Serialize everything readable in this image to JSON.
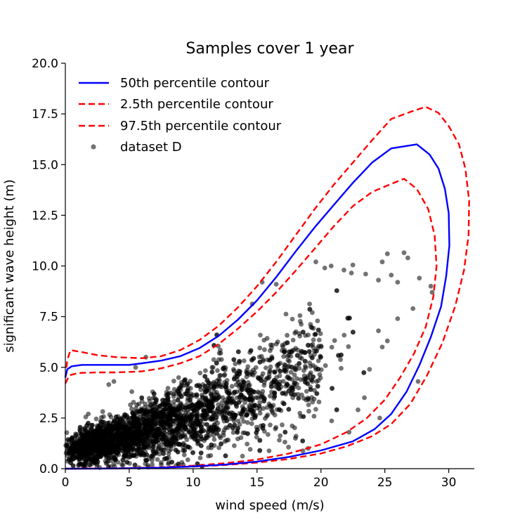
{
  "chart_data": {
    "type": "scatter",
    "title": "Samples cover 1 year",
    "xlabel": "wind speed (m/s)",
    "ylabel": "significant wave height (m)",
    "xlim": [
      0,
      32
    ],
    "ylim": [
      0,
      20
    ],
    "xticks": [
      "0",
      "5",
      "10",
      "15",
      "20",
      "25",
      "30"
    ],
    "yticks": [
      "0.0",
      "2.5",
      "5.0",
      "7.5",
      "10.0",
      "12.5",
      "15.0",
      "17.5",
      "20.0"
    ],
    "grid": false,
    "legend_position": "top-left",
    "series": [
      {
        "name": "50th percentile contour",
        "style": "solid",
        "color": "#0000ff",
        "points": [
          [
            0,
            4.5
          ],
          [
            0.15,
            4.9
          ],
          [
            0.5,
            5.05
          ],
          [
            1.3,
            5.12
          ],
          [
            3,
            5.12
          ],
          [
            5,
            5.12
          ],
          [
            6,
            5.2
          ],
          [
            7.5,
            5.33
          ],
          [
            9,
            5.55
          ],
          [
            10.5,
            5.95
          ],
          [
            12,
            6.55
          ],
          [
            13.5,
            7.35
          ],
          [
            15,
            8.3
          ],
          [
            16.5,
            9.45
          ],
          [
            18,
            10.7
          ],
          [
            19.5,
            11.9
          ],
          [
            21,
            13.0
          ],
          [
            22.5,
            14.1
          ],
          [
            24,
            15.1
          ],
          [
            25.5,
            15.8
          ],
          [
            27.5,
            16.0
          ],
          [
            28.5,
            15.5
          ],
          [
            29.2,
            14.8
          ],
          [
            29.7,
            13.8
          ],
          [
            30,
            12.6
          ],
          [
            30.05,
            11.0
          ],
          [
            29.8,
            9.5
          ],
          [
            29.4,
            8.0
          ],
          [
            28.6,
            6.5
          ],
          [
            27.7,
            5.1
          ],
          [
            26.7,
            3.8
          ],
          [
            25.5,
            2.7
          ],
          [
            24.2,
            1.95
          ],
          [
            22.5,
            1.35
          ],
          [
            20,
            0.9
          ],
          [
            17.5,
            0.58
          ],
          [
            15,
            0.35
          ],
          [
            12.5,
            0.2
          ],
          [
            10,
            0.11
          ],
          [
            7.5,
            0.05
          ],
          [
            5,
            0.02
          ],
          [
            2.5,
            0.005
          ],
          [
            0.5,
            0.0
          ],
          [
            0,
            0
          ]
        ]
      },
      {
        "name": "2.5th percentile contour",
        "style": "dashed",
        "color": "#ff0000",
        "points": [
          [
            0,
            4.5
          ],
          [
            0.15,
            5.35
          ],
          [
            0.4,
            5.85
          ],
          [
            1.3,
            5.75
          ],
          [
            2.5,
            5.6
          ],
          [
            4,
            5.5
          ],
          [
            6,
            5.45
          ],
          [
            7.5,
            5.55
          ],
          [
            9,
            5.85
          ],
          [
            10.5,
            6.35
          ],
          [
            12,
            7.05
          ],
          [
            13.5,
            7.95
          ],
          [
            15,
            9.0
          ],
          [
            16.5,
            10.2
          ],
          [
            18,
            11.5
          ],
          [
            19.5,
            12.8
          ],
          [
            21,
            14.0
          ],
          [
            22.5,
            15.1
          ],
          [
            24,
            16.2
          ],
          [
            25.5,
            17.25
          ],
          [
            27,
            17.6
          ],
          [
            28.2,
            17.85
          ],
          [
            29.2,
            17.55
          ],
          [
            30,
            16.9
          ],
          [
            30.8,
            16.0
          ],
          [
            31.3,
            14.8
          ],
          [
            31.6,
            13.2
          ],
          [
            31.55,
            11.5
          ],
          [
            31.2,
            9.8
          ],
          [
            30.5,
            8.0
          ],
          [
            29.5,
            6.2
          ],
          [
            28.3,
            4.6
          ],
          [
            27,
            3.2
          ],
          [
            25.5,
            2.2
          ],
          [
            24,
            1.6
          ],
          [
            22,
            1.1
          ],
          [
            20,
            0.75
          ],
          [
            17.5,
            0.48
          ],
          [
            15,
            0.3
          ],
          [
            12.5,
            0.18
          ],
          [
            10,
            0.1
          ],
          [
            7.5,
            0.05
          ],
          [
            5,
            0.02
          ],
          [
            2.5,
            0.005
          ],
          [
            0.5,
            0.0
          ],
          [
            0,
            0
          ]
        ]
      },
      {
        "name": "97.5th percentile contour",
        "style": "dashed",
        "color": "#ff0000",
        "points": [
          [
            0,
            4.2
          ],
          [
            0.3,
            4.6
          ],
          [
            1,
            4.72
          ],
          [
            2.5,
            4.75
          ],
          [
            4,
            4.75
          ],
          [
            6,
            4.8
          ],
          [
            7.5,
            4.95
          ],
          [
            9,
            5.2
          ],
          [
            10.5,
            5.55
          ],
          [
            12,
            6.15
          ],
          [
            13.5,
            6.9
          ],
          [
            15,
            7.75
          ],
          [
            16.5,
            8.7
          ],
          [
            18,
            9.75
          ],
          [
            19.5,
            10.85
          ],
          [
            21,
            11.95
          ],
          [
            22.5,
            12.95
          ],
          [
            24,
            13.65
          ],
          [
            25.5,
            14.05
          ],
          [
            26.5,
            14.3
          ],
          [
            27.5,
            13.8
          ],
          [
            28.4,
            12.8
          ],
          [
            28.9,
            11.5
          ],
          [
            29.05,
            10.0
          ],
          [
            28.8,
            8.5
          ],
          [
            28.2,
            7.0
          ],
          [
            27.3,
            5.7
          ],
          [
            26.2,
            4.5
          ],
          [
            25,
            3.4
          ],
          [
            23.6,
            2.5
          ],
          [
            22,
            1.8
          ],
          [
            20,
            1.2
          ],
          [
            17.5,
            0.75
          ],
          [
            15,
            0.45
          ],
          [
            12.5,
            0.27
          ],
          [
            10,
            0.15
          ],
          [
            7.5,
            0.07
          ],
          [
            5,
            0.03
          ],
          [
            2.5,
            0.01
          ],
          [
            0.5,
            0.0
          ],
          [
            0,
            0
          ]
        ]
      },
      {
        "name": "dataset D",
        "style": "points",
        "color": "#000000",
        "cloud": {
          "x_range": [
            0,
            28
          ],
          "y_range": [
            0,
            10.7
          ],
          "sample_count": 8766
        },
        "outliers": [
          [
            25.2,
            10.6
          ],
          [
            26.5,
            10.65
          ],
          [
            24.8,
            10.2
          ],
          [
            26.8,
            10.4
          ],
          [
            22.5,
            10.05
          ],
          [
            21.8,
            9.8
          ],
          [
            20.8,
            10.0
          ],
          [
            23.5,
            9.6
          ],
          [
            25.5,
            9.55
          ],
          [
            28.6,
            9.0
          ],
          [
            27.7,
            9.4
          ],
          [
            26.0,
            9.2
          ],
          [
            28.7,
            8.7
          ],
          [
            27.2,
            7.9
          ],
          [
            26.0,
            7.4
          ],
          [
            24.5,
            6.8
          ],
          [
            25.2,
            6.3
          ],
          [
            24.8,
            6.0
          ],
          [
            23.8,
            4.9
          ],
          [
            27.6,
            4.3
          ],
          [
            23.4,
            3.5
          ],
          [
            22.9,
            2.9
          ],
          [
            24.6,
            2.5
          ],
          [
            22.2,
            1.8
          ],
          [
            19.0,
            1.0
          ],
          [
            18.0,
            1.5
          ],
          [
            6.3,
            5.5
          ],
          [
            5.5,
            5.0
          ],
          [
            3.8,
            4.3
          ],
          [
            3.4,
            4.15
          ],
          [
            5.2,
            3.8
          ],
          [
            1.8,
            2.7
          ],
          [
            1.6,
            2.55
          ],
          [
            7.5,
            0.3
          ],
          [
            6.8,
            0.2
          ],
          [
            15.4,
            9.2
          ],
          [
            16.5,
            9.1
          ],
          [
            19.6,
            10.2
          ],
          [
            20.3,
            9.9
          ],
          [
            24.5,
            9.3
          ]
        ]
      }
    ]
  }
}
